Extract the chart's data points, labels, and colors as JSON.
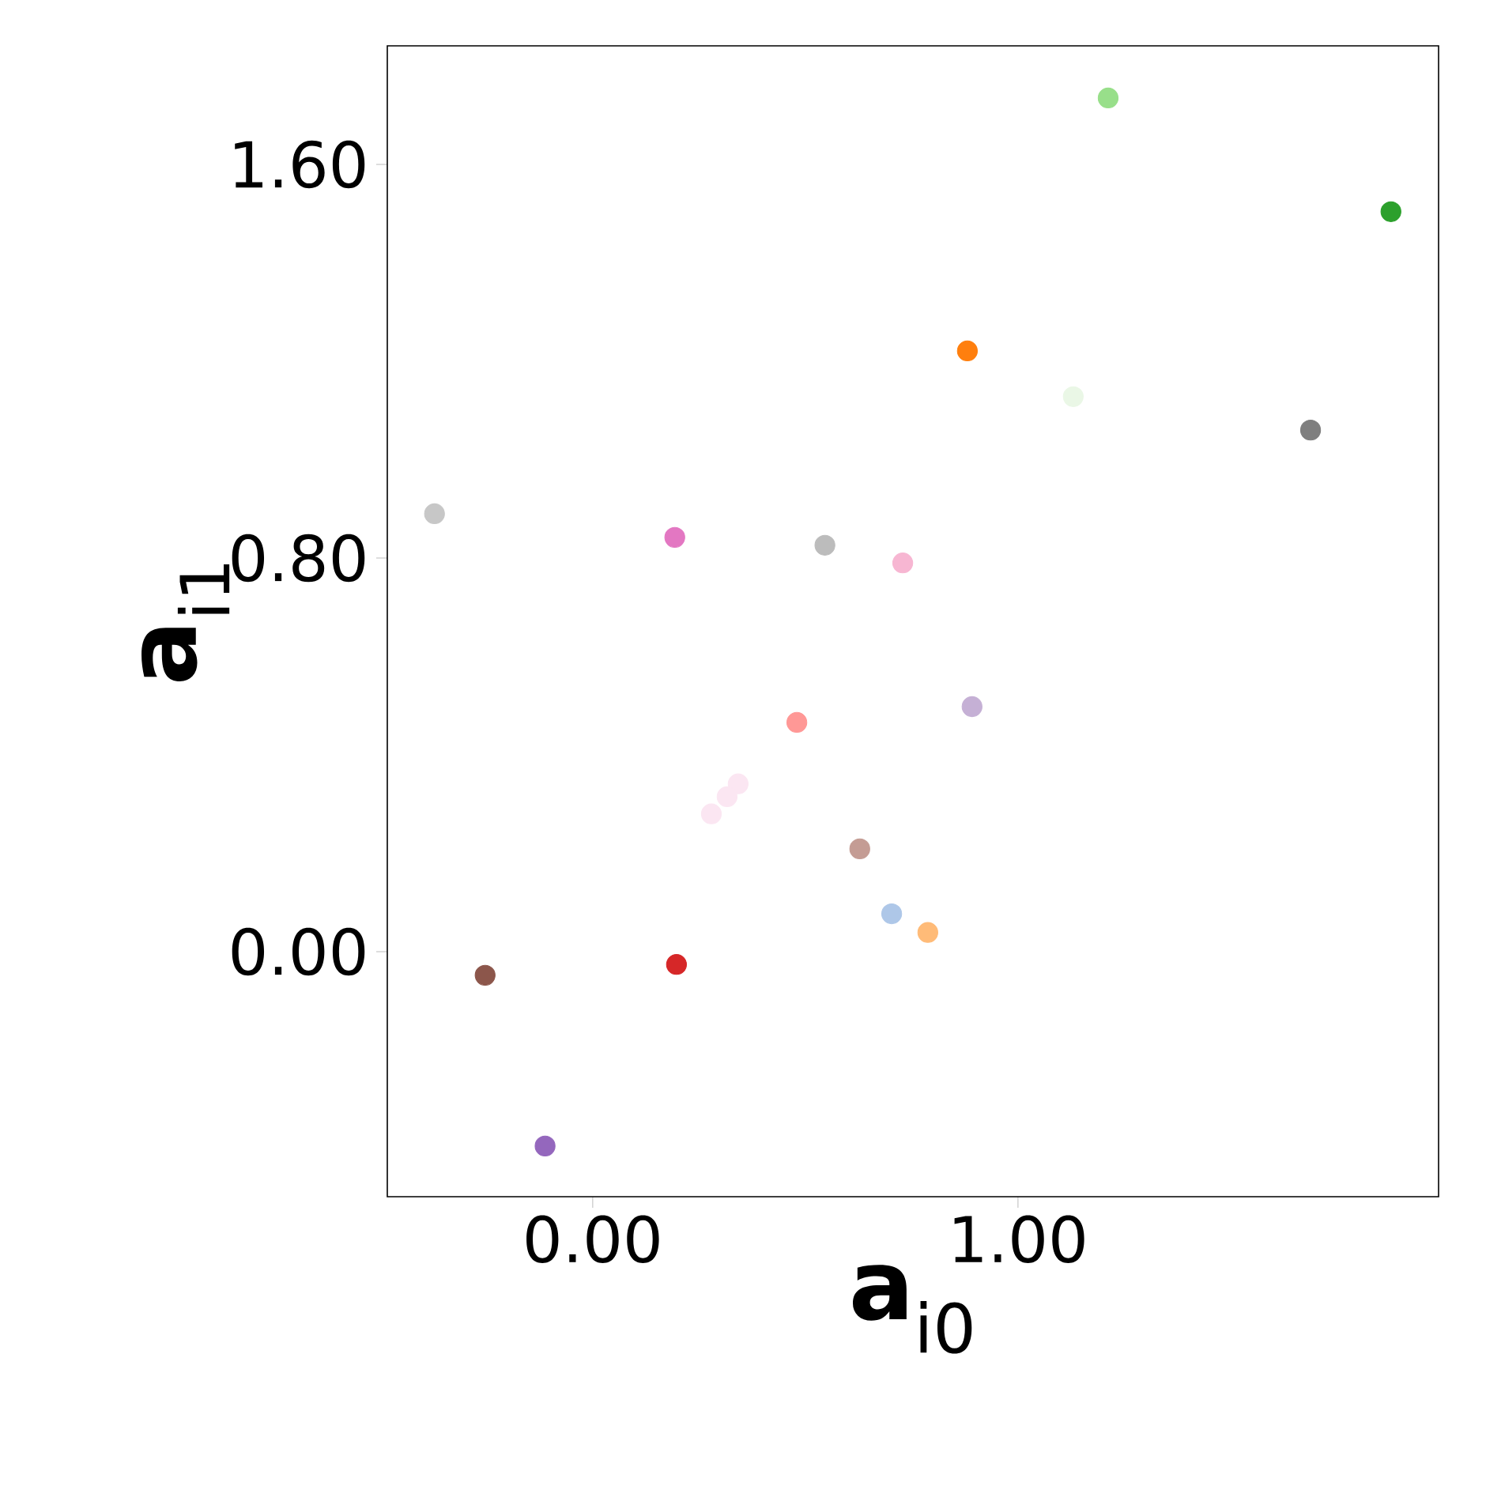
{
  "chart_data": {
    "type": "scatter",
    "xlabel": "**a**$_{i0}$",
    "ylabel": "**a**$_{i1}$",
    "x": [
      1.212,
      1.877,
      0.881,
      1.13,
      1.688,
      -0.372,
      0.193,
      0.546,
      0.729,
      0.892,
      0.48,
      0.342,
      0.316,
      0.279,
      0.628,
      0.703,
      0.788,
      0.197,
      -0.253,
      -0.112
    ],
    "values": [
      1.735,
      1.504,
      1.221,
      1.128,
      1.06,
      0.89,
      0.842,
      0.826,
      0.79,
      0.498,
      0.466,
      0.341,
      0.315,
      0.28,
      0.209,
      0.077,
      0.039,
      -0.026,
      -0.048,
      -0.395
    ],
    "colors": [
      "#98df8a",
      "#2ca02c",
      "#ff7f0e",
      "#eaf7e6",
      "#7f7f7f",
      "#c7c7c7",
      "#e377c2",
      "#bcbcbc",
      "#f7b6d2",
      "#c5b0d5",
      "#ff9896",
      "#fbe6f2",
      "#fbe6f2",
      "#fbe6f2",
      "#c49c94",
      "#aec7e8",
      "#ffbb78",
      "#d62728",
      "#8c564b",
      "#9467bd"
    ],
    "xlim": [
      -0.483,
      1.989
    ],
    "ylim": [
      -0.498,
      1.841
    ],
    "xticks": [
      {
        "value": 0,
        "label": "0.00"
      },
      {
        "value": 1,
        "label": "1.00"
      }
    ],
    "yticks": [
      {
        "value": 0,
        "label": "0.00"
      },
      {
        "value": 0.8,
        "label": "0.80"
      },
      {
        "value": 1.6,
        "label": "1.60"
      }
    ],
    "grid": false
  }
}
